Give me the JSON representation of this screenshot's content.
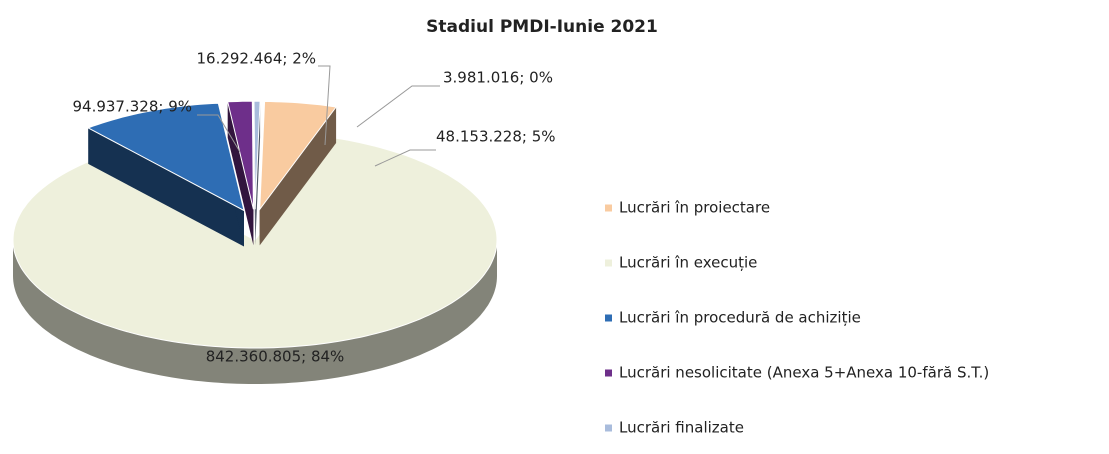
{
  "chart_data": {
    "type": "pie",
    "title": "Stadiul PMDI-Iunie 2021",
    "categories": [
      "Lucrări în proiectare",
      "Lucrări în execuție",
      "Lucrări în procedură de achiziție",
      "Lucrări nesolicitate (Anexa 5+Anexa 10-fără S.T.)",
      "Lucrări finalizate"
    ],
    "values": [
      48153228,
      842360805,
      94937328,
      16292464,
      3981016
    ],
    "value_labels": [
      "48.153.228; 5%",
      "842.360.805; 84%",
      "94.937.328; 9%",
      "16.292.464; 2%",
      "3.981.016; 0%"
    ],
    "colors": [
      "#f9cba0",
      "#eef0dc",
      "#2e6db4",
      "#6e2f8a",
      "#a9bcdc"
    ],
    "legend": "right"
  }
}
